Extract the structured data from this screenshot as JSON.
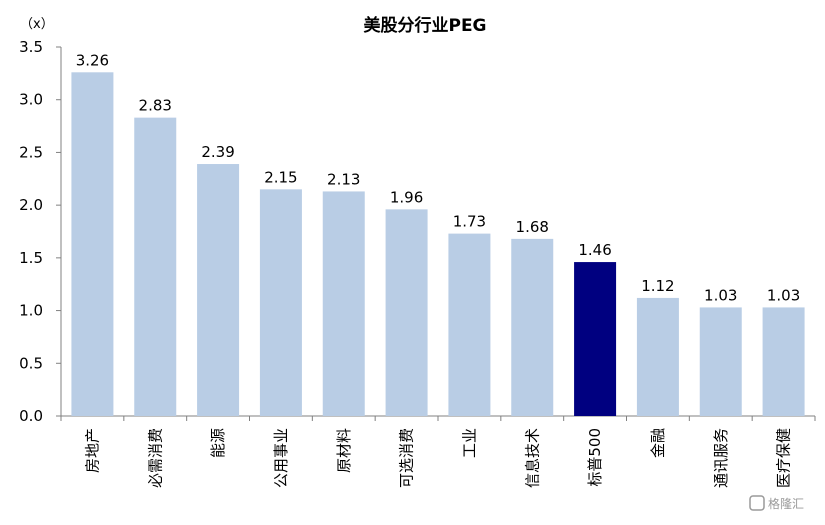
{
  "chart_data": {
    "type": "bar",
    "title": "美股分行业PEG",
    "unit_label": "（x）",
    "categories": [
      "房地产",
      "必需消费",
      "能源",
      "公用事业",
      "原材料",
      "可选消费",
      "工业",
      "信息技术",
      "标普500",
      "金融",
      "通讯服务",
      "医疗保健"
    ],
    "values": [
      3.26,
      2.83,
      2.39,
      2.15,
      2.13,
      1.96,
      1.73,
      1.68,
      1.46,
      1.12,
      1.03,
      1.03
    ],
    "value_labels": [
      "3.26",
      "2.83",
      "2.39",
      "2.15",
      "2.13",
      "1.96",
      "1.73",
      "1.68",
      "1.46",
      "1.12",
      "1.03",
      "1.03"
    ],
    "highlight_category": "标普500",
    "ylim": [
      0,
      3.5
    ],
    "yticks": [
      "0.0",
      "0.5",
      "1.0",
      "1.5",
      "2.0",
      "2.5",
      "3.0",
      "3.5"
    ],
    "grid": false,
    "legend": "none",
    "colors": {
      "bar": "#b9cde5",
      "highlight": "#000080",
      "axis": "#808080"
    }
  },
  "watermark": {
    "text": "格隆汇"
  }
}
